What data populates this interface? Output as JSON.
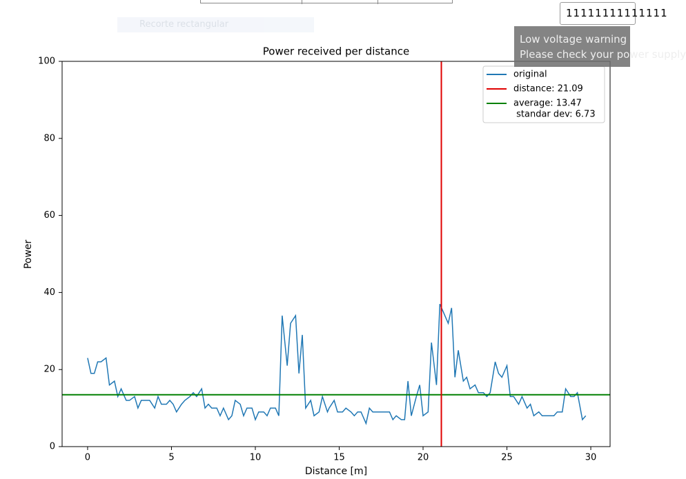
{
  "ui": {
    "toolbar_button": "Recorte rectangular",
    "input_value": "11111111111111",
    "toast_line1": "Low voltage warning",
    "toast_line2": "Please check your power supply"
  },
  "chart_data": {
    "type": "line",
    "title": "Power received per distance",
    "x_label": "Distance [m]",
    "y_label": "Power",
    "xlim": [
      -1.52,
      31.15
    ],
    "ylim": [
      0,
      100
    ],
    "xticks": [
      0,
      5,
      10,
      15,
      20,
      25,
      30
    ],
    "yticks": [
      0,
      20,
      40,
      60,
      80,
      100
    ],
    "x": [
      0,
      0.2,
      0.4,
      0.6,
      0.8,
      1.1,
      1.3,
      1.6,
      1.8,
      2.0,
      2.3,
      2.5,
      2.8,
      3.0,
      3.2,
      3.5,
      3.7,
      4.0,
      4.2,
      4.4,
      4.7,
      4.9,
      5.1,
      5.3,
      5.6,
      5.8,
      6.1,
      6.3,
      6.5,
      6.8,
      7.0,
      7.2,
      7.4,
      7.7,
      7.9,
      8.1,
      8.4,
      8.6,
      8.8,
      9.1,
      9.3,
      9.5,
      9.8,
      10.0,
      10.2,
      10.5,
      10.7,
      10.9,
      11.2,
      11.4,
      11.6,
      11.9,
      12.1,
      12.4,
      12.6,
      12.8,
      13.0,
      13.3,
      13.5,
      13.8,
      14.0,
      14.3,
      14.4,
      14.7,
      14.9,
      15.2,
      15.4,
      15.7,
      15.9,
      16.1,
      16.3,
      16.6,
      16.8,
      17.0,
      17.3,
      17.5,
      17.8,
      18.0,
      18.2,
      18.4,
      18.7,
      18.9,
      19.1,
      19.3,
      19.6,
      19.8,
      20.0,
      20.3,
      20.5,
      20.8,
      21.0,
      21.2,
      21.5,
      21.7,
      21.9,
      22.1,
      22.4,
      22.6,
      22.8,
      23.1,
      23.3,
      23.6,
      23.8,
      24.0,
      24.3,
      24.5,
      24.7,
      25.0,
      25.2,
      25.4,
      25.7,
      25.9,
      26.2,
      26.4,
      26.6,
      26.9,
      27.1,
      27.3,
      27.6,
      27.8,
      28.0,
      28.3,
      28.5,
      28.8,
      29.0,
      29.2,
      29.5,
      29.7
    ],
    "series": [
      {
        "name": "original",
        "color": "#1f77b4",
        "values": [
          23,
          19,
          19,
          22,
          22,
          23,
          16,
          17,
          13,
          15,
          12,
          12,
          13,
          10,
          12,
          12,
          12,
          10,
          13,
          11,
          11,
          12,
          11,
          9,
          11,
          12,
          13,
          14,
          13,
          15,
          10,
          11,
          10,
          10,
          8,
          10,
          7,
          8,
          12,
          11,
          8,
          10,
          10,
          7,
          9,
          9,
          8,
          10,
          10,
          8,
          34,
          21,
          32,
          34,
          19,
          29,
          10,
          12,
          8,
          9,
          13,
          9,
          10,
          12,
          9,
          9,
          10,
          9,
          8,
          9,
          9,
          6,
          10,
          9,
          9,
          9,
          9,
          9,
          7,
          8,
          7,
          7,
          17,
          8,
          13,
          16,
          8,
          9,
          27,
          16,
          37,
          35,
          32,
          36,
          18,
          25,
          17,
          18,
          15,
          16,
          14,
          14,
          13,
          14,
          22,
          19,
          18,
          21,
          13,
          13,
          11,
          13,
          10,
          11,
          8,
          9,
          8,
          8,
          8,
          8,
          9,
          9,
          15,
          13,
          13,
          14,
          7,
          8
        ]
      }
    ],
    "vline": {
      "x": 21.09,
      "label": "distance: 21.09",
      "color": "#e00000"
    },
    "hline": {
      "y": 13.47,
      "label": "average: 13.47",
      "sublabel": " standar dev: 6.73",
      "color": "#008000"
    },
    "legend": "upper right"
  }
}
